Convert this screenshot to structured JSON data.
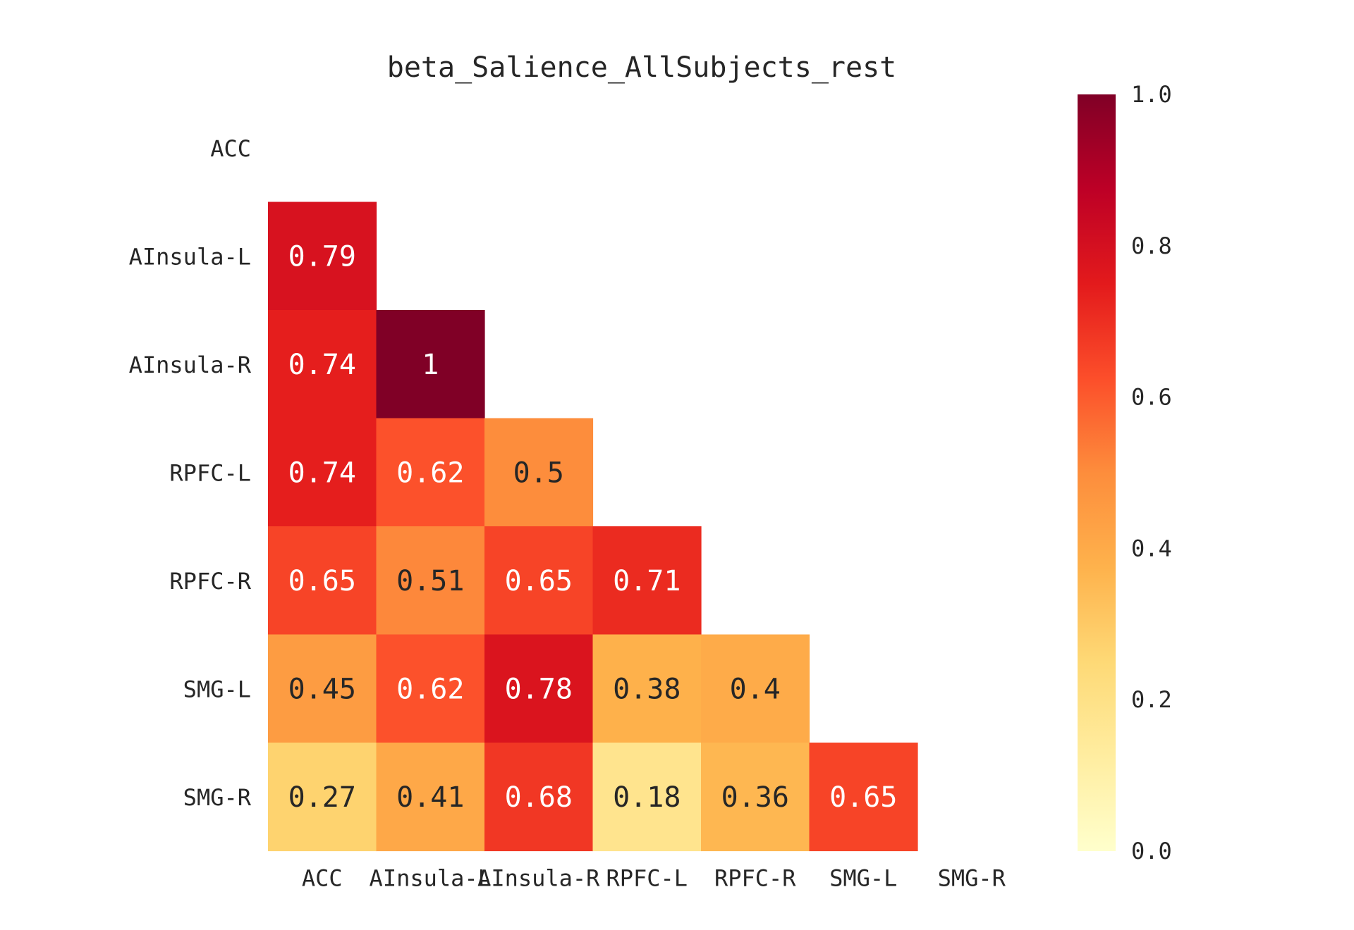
{
  "chart_data": {
    "type": "heatmap",
    "title": "beta_Salience_AllSubjects_rest",
    "labels": [
      "ACC",
      "AInsula-L",
      "AInsula-R",
      "RPFC-L",
      "RPFC-R",
      "SMG-L",
      "SMG-R"
    ],
    "matrix": [
      [
        null,
        null,
        null,
        null,
        null,
        null,
        null
      ],
      [
        0.79,
        null,
        null,
        null,
        null,
        null,
        null
      ],
      [
        0.74,
        1,
        null,
        null,
        null,
        null,
        null
      ],
      [
        0.74,
        0.62,
        0.5,
        null,
        null,
        null,
        null
      ],
      [
        0.65,
        0.51,
        0.65,
        0.71,
        null,
        null,
        null
      ],
      [
        0.45,
        0.62,
        0.78,
        0.38,
        0.4,
        null,
        null
      ],
      [
        0.27,
        0.41,
        0.68,
        0.18,
        0.36,
        0.65,
        null
      ]
    ],
    "mask": "upper triangle including diagonal",
    "colormap": "YlOrRd",
    "colorbar": {
      "range": [
        0.0,
        1.0
      ],
      "ticks": [
        "0.0",
        "0.2",
        "0.4",
        "0.6",
        "0.8",
        "1.0"
      ]
    },
    "annot_text_colors": {
      "light": "#ffffff",
      "dark": "#262626"
    }
  }
}
